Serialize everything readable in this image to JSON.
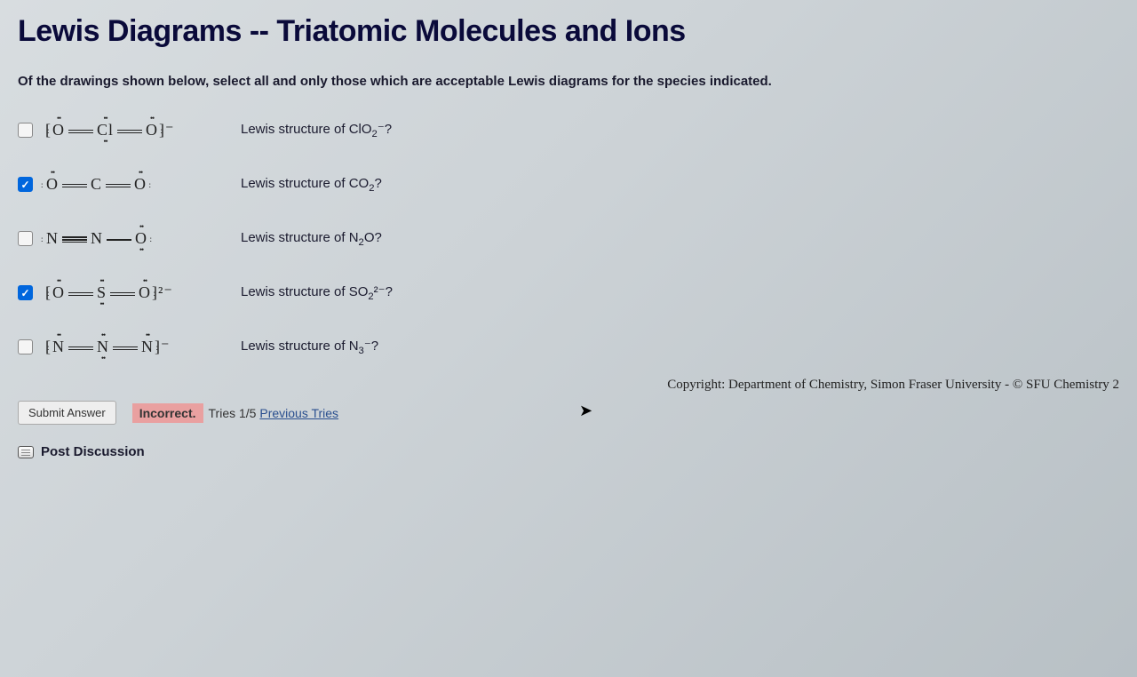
{
  "title": "Lewis Diagrams -- Triatomic Molecules and Ions",
  "prompt": "Of the drawings shown below, select all and only those which are acceptable Lewis diagrams for the species indicated.",
  "options": [
    {
      "checked": false,
      "lewis": "[:Ö=C̈l=Ö:]⁻",
      "label_prefix": "Lewis structure of ClO",
      "label_sub": "2",
      "label_suffix": "⁻?"
    },
    {
      "checked": true,
      "lewis": ":Ö=C=Ö:",
      "label_prefix": "Lewis structure of CO",
      "label_sub": "2",
      "label_suffix": "?"
    },
    {
      "checked": false,
      "lewis": ":N≡N—Ö:",
      "label_prefix": "Lewis structure of N",
      "label_sub": "2",
      "label_suffix": "O?"
    },
    {
      "checked": true,
      "lewis": "[:Ö=S̈=Ö:]²⁻",
      "label_prefix": "Lewis structure of SO",
      "label_sub": "2",
      "label_suffix": "²⁻?"
    },
    {
      "checked": false,
      "lewis": "[:N̈=N̈=N̈:]⁻",
      "label_prefix": "Lewis structure of N",
      "label_sub": "3",
      "label_suffix": "⁻?"
    }
  ],
  "footer": {
    "submit_label": "Submit Answer",
    "status": "Incorrect.",
    "tries_prefix": "Tries ",
    "tries_value": "1/5",
    "previous_link": "Previous Tries",
    "copyright": "Copyright: Department of Chemistry, Simon Fraser University - © SFU Chemistry 2",
    "discussion": "Post Discussion"
  }
}
